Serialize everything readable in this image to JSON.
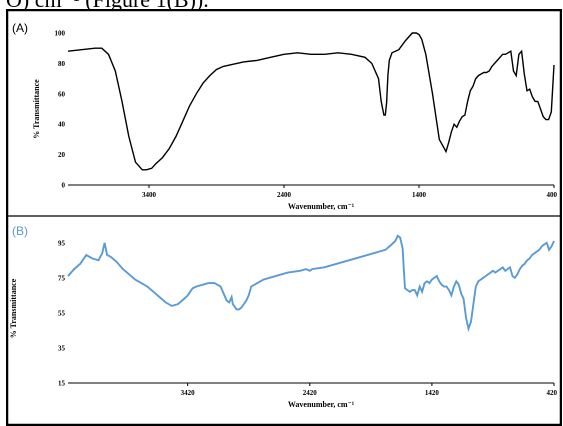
{
  "header": {
    "text": "O) cm⁻¹ (Figure 1(B))."
  },
  "colors": {
    "panel_a": "#000000",
    "panel_b": "#5b9bd5",
    "frame": "#000000",
    "panel_b_label": "#5b9bd5"
  },
  "chart_data": [
    {
      "panel_label": "(A)",
      "type": "line",
      "xlabel": "Wavenumber, cm⁻¹",
      "ylabel": "% Transmittance",
      "xlim": [
        4000,
        400
      ],
      "ylim": [
        0,
        100
      ],
      "x_ticks": [
        3400,
        2400,
        1400,
        400
      ],
      "y_ticks": [
        0,
        20,
        40,
        60,
        80,
        100
      ],
      "grid": false,
      "series": [
        {
          "x": [
            4000,
            3900,
            3800,
            3750,
            3700,
            3650,
            3600,
            3550,
            3500,
            3450,
            3420,
            3380,
            3350,
            3300,
            3250,
            3200,
            3150,
            3100,
            3050,
            3000,
            2950,
            2900,
            2850,
            2800,
            2750,
            2700,
            2600,
            2500,
            2400,
            2300,
            2200,
            2100,
            2000,
            1900,
            1800,
            1750,
            1700,
            1680,
            1660,
            1650,
            1640,
            1630,
            1620,
            1600,
            1550,
            1500,
            1450,
            1420,
            1400,
            1380,
            1350,
            1300,
            1250,
            1200,
            1180,
            1160,
            1140,
            1120,
            1100,
            1080,
            1060,
            1040,
            1020,
            1000,
            980,
            960,
            940,
            920,
            900,
            880,
            860,
            840,
            820,
            800,
            780,
            760,
            740,
            720,
            700,
            680,
            660,
            640,
            620,
            600,
            580,
            560,
            540,
            520,
            500,
            480,
            460,
            440,
            420,
            400
          ],
          "y": [
            88,
            89,
            90,
            90,
            86,
            75,
            55,
            32,
            15,
            10,
            10,
            11,
            14,
            18,
            24,
            32,
            42,
            52,
            60,
            67,
            72,
            76,
            78,
            79,
            80,
            81,
            82,
            84,
            86,
            87,
            86,
            86,
            87,
            86,
            84,
            80,
            70,
            55,
            46,
            46,
            54,
            72,
            82,
            87,
            89,
            95,
            100,
            100,
            99,
            96,
            86,
            60,
            30,
            22,
            28,
            35,
            40,
            38,
            42,
            45,
            46,
            55,
            62,
            65,
            70,
            72,
            73,
            74,
            74,
            75,
            78,
            80,
            82,
            84,
            86,
            86,
            87,
            88,
            75,
            72,
            86,
            88,
            73,
            62,
            63,
            58,
            55,
            55,
            50,
            45,
            43,
            43,
            48,
            79
          ]
        }
      ]
    },
    {
      "panel_label": "(B)",
      "type": "line",
      "xlabel": "Wavenumber, cm⁻¹",
      "ylabel": "% Transmittance",
      "xlim": [
        4400,
        420
      ],
      "ylim": [
        15,
        100
      ],
      "x_ticks": [
        3420,
        2420,
        1420,
        420
      ],
      "y_ticks": [
        15,
        35,
        55,
        75,
        95
      ],
      "grid": false,
      "series": [
        {
          "x": [
            4400,
            4350,
            4300,
            4250,
            4200,
            4150,
            4120,
            4100,
            4080,
            4050,
            4000,
            3950,
            3900,
            3850,
            3800,
            3750,
            3700,
            3650,
            3600,
            3550,
            3500,
            3450,
            3420,
            3400,
            3380,
            3350,
            3300,
            3250,
            3200,
            3150,
            3100,
            3080,
            3060,
            3050,
            3040,
            3020,
            3000,
            2980,
            2960,
            2940,
            2920,
            2900,
            2850,
            2800,
            2750,
            2700,
            2600,
            2500,
            2450,
            2420,
            2400,
            2300,
            2200,
            2100,
            2000,
            1900,
            1850,
            1800,
            1750,
            1720,
            1700,
            1680,
            1660,
            1650,
            1640,
            1620,
            1600,
            1580,
            1560,
            1540,
            1520,
            1500,
            1480,
            1460,
            1440,
            1420,
            1400,
            1380,
            1360,
            1340,
            1320,
            1300,
            1280,
            1260,
            1240,
            1220,
            1200,
            1180,
            1160,
            1140,
            1120,
            1100,
            1080,
            1060,
            1040,
            1020,
            1000,
            980,
            960,
            940,
            920,
            900,
            880,
            860,
            840,
            820,
            800,
            780,
            760,
            740,
            720,
            700,
            680,
            660,
            640,
            620,
            600,
            580,
            560,
            540,
            520,
            500,
            480,
            460,
            440,
            420
          ],
          "y": [
            76,
            80,
            83,
            88,
            86,
            85,
            89,
            95,
            88,
            87,
            84,
            80,
            77,
            74,
            72,
            70,
            67,
            64,
            61,
            59,
            60,
            63,
            65,
            67,
            69,
            70,
            71,
            72,
            72,
            70,
            62,
            61,
            64,
            60,
            59,
            57,
            57,
            58,
            60,
            62,
            65,
            70,
            72,
            74,
            75,
            76,
            78,
            79,
            80,
            79,
            80,
            81,
            83,
            85,
            87,
            89,
            90,
            91,
            94,
            96,
            99,
            98,
            92,
            80,
            69,
            68,
            67,
            68,
            68,
            65,
            70,
            67,
            72,
            73,
            72,
            74,
            75,
            76,
            73,
            71,
            70,
            70,
            68,
            65,
            70,
            73,
            71,
            66,
            63,
            52,
            46,
            50,
            60,
            70,
            73,
            74,
            75,
            76,
            77,
            78,
            79,
            78,
            79,
            80,
            81,
            79,
            80,
            81,
            76,
            75,
            77,
            80,
            82,
            83,
            85,
            86,
            88,
            89,
            90,
            91,
            93,
            94,
            95,
            91,
            93,
            96
          ]
        }
      ]
    }
  ]
}
